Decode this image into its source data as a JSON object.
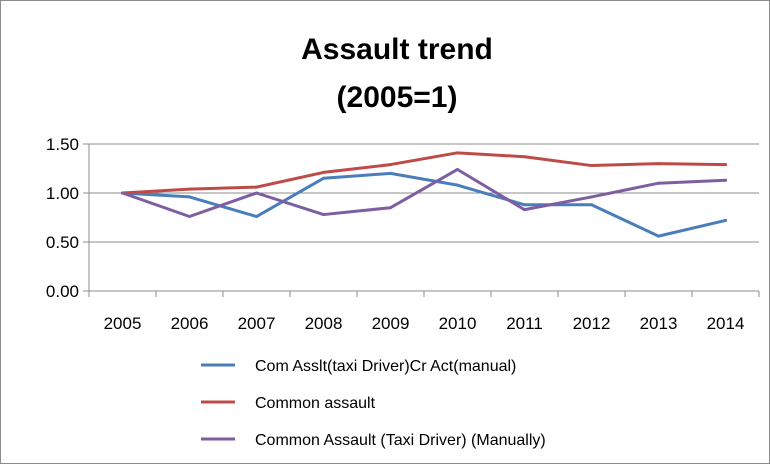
{
  "chart_data": {
    "type": "line",
    "title_lines": [
      "Assault trend",
      "(2005=1)"
    ],
    "categories": [
      "2005",
      "2006",
      "2007",
      "2008",
      "2009",
      "2010",
      "2011",
      "2012",
      "2013",
      "2014"
    ],
    "ylim": [
      0,
      1.5
    ],
    "yticks": [
      "0.00",
      "0.50",
      "1.00",
      "1.50"
    ],
    "ytick_values": [
      0,
      0.5,
      1.0,
      1.5
    ],
    "grid": true,
    "legend_position": "bottom",
    "series": [
      {
        "name": "Com Asslt(taxi Driver)Cr Act(manual)",
        "color": "#4a7ebb",
        "values": [
          1.0,
          0.96,
          0.76,
          1.15,
          1.2,
          1.08,
          0.88,
          0.88,
          0.56,
          0.72
        ]
      },
      {
        "name": "Common assault",
        "color": "#be4b48",
        "values": [
          1.0,
          1.04,
          1.06,
          1.21,
          1.29,
          1.41,
          1.37,
          1.28,
          1.3,
          1.29
        ]
      },
      {
        "name": "Common Assault (Taxi Driver) (Manually)",
        "color": "#7e5ea0",
        "values": [
          1.0,
          0.76,
          1.0,
          0.78,
          0.85,
          1.24,
          0.83,
          0.96,
          1.1,
          1.13
        ]
      }
    ]
  }
}
